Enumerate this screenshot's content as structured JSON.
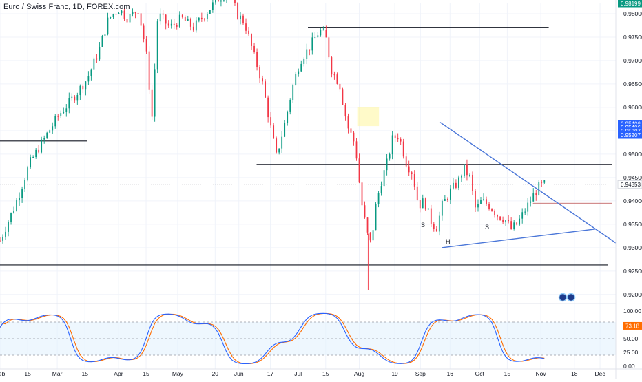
{
  "header": {
    "title": "Euro / Swiss Franc, 1D, FOREX.com"
  },
  "price_axis": {
    "ticks": [
      "0.98000",
      "0.97500",
      "0.97000",
      "0.96500",
      "0.96000",
      "0.95500",
      "0.95000",
      "0.94500",
      "0.94000",
      "0.93500",
      "0.93000",
      "0.92500",
      "0.92000"
    ],
    "badges": [
      {
        "label": "0.98199",
        "price": 0.98199,
        "color": "#089981"
      },
      {
        "label": "0.95406",
        "price": 0.9565,
        "color": "#2962ff"
      },
      {
        "label": "0.95406",
        "price": 0.9557,
        "color": "#2962ff"
      },
      {
        "label": "0.95207",
        "price": 0.9549,
        "color": "#2962ff"
      },
      {
        "label": "0.95207",
        "price": 0.9541,
        "color": "#2962ff"
      },
      {
        "label": "0.94353",
        "price": 0.94353,
        "color": "#ffffff",
        "text": "#131722"
      }
    ]
  },
  "stoch_axis": {
    "ticks": [
      "100.00",
      "75.00",
      "50.00",
      "25.00",
      "0.00"
    ],
    "badge": {
      "label": "73.18",
      "value": 73.18,
      "color": "#ff6d00"
    }
  },
  "time_axis": {
    "labels": [
      {
        "t": "Feb",
        "d": 0
      },
      {
        "t": "15",
        "d": 14
      },
      {
        "t": "Mar",
        "d": 29
      },
      {
        "t": "15",
        "d": 43
      },
      {
        "t": "Apr",
        "d": 60
      },
      {
        "t": "15",
        "d": 74
      },
      {
        "t": "May",
        "d": 90
      },
      {
        "t": "20",
        "d": 109
      },
      {
        "t": "Jun",
        "d": 121
      },
      {
        "t": "17",
        "d": 137
      },
      {
        "t": "Jul",
        "d": 151
      },
      {
        "t": "15",
        "d": 165
      },
      {
        "t": "Aug",
        "d": 182
      },
      {
        "t": "19",
        "d": 200
      },
      {
        "t": "Sep",
        "d": 213
      },
      {
        "t": "16",
        "d": 228
      },
      {
        "t": "Oct",
        "d": 243
      },
      {
        "t": "15",
        "d": 257
      },
      {
        "t": "Nov",
        "d": 274
      },
      {
        "t": "18",
        "d": 291
      },
      {
        "t": "Dec",
        "d": 304
      }
    ]
  },
  "annotations": {
    "s_left": "S",
    "h": "H",
    "s_right": "S"
  },
  "colors": {
    "up": "#089981",
    "down": "#f23645",
    "trend": "#4a76d8",
    "stochK": "#2962ff",
    "stochD": "#ff6d00",
    "band": "#e3f2fd"
  },
  "chart_data": {
    "type": "candlestick",
    "symbol": "Euro / Swiss Franc",
    "timeframe": "1D",
    "price_range": [
      0.9185,
      0.9822
    ],
    "anchors": [
      [
        0,
        0.9315
      ],
      [
        8,
        0.9395
      ],
      [
        15,
        0.948
      ],
      [
        22,
        0.953
      ],
      [
        30,
        0.9585
      ],
      [
        37,
        0.962
      ],
      [
        44,
        0.966
      ],
      [
        50,
        0.972
      ],
      [
        55,
        0.979
      ],
      [
        60,
        0.981
      ],
      [
        65,
        0.979
      ],
      [
        70,
        0.981
      ],
      [
        74,
        0.972
      ],
      [
        77,
        0.958
      ],
      [
        80,
        0.98
      ],
      [
        86,
        0.977
      ],
      [
        92,
        0.979
      ],
      [
        98,
        0.977
      ],
      [
        104,
        0.98
      ],
      [
        110,
        0.983
      ],
      [
        116,
        0.985
      ],
      [
        120,
        0.98
      ],
      [
        124,
        0.978
      ],
      [
        128,
        0.972
      ],
      [
        133,
        0.965
      ],
      [
        137,
        0.956
      ],
      [
        140,
        0.9495
      ],
      [
        144,
        0.956
      ],
      [
        148,
        0.964
      ],
      [
        152,
        0.97
      ],
      [
        157,
        0.973
      ],
      [
        162,
        0.9765
      ],
      [
        165,
        0.975
      ],
      [
        168,
        0.968
      ],
      [
        172,
        0.965
      ],
      [
        176,
        0.956
      ],
      [
        180,
        0.952
      ],
      [
        183,
        0.94
      ],
      [
        186,
        0.933
      ],
      [
        188,
        0.9305
      ],
      [
        190,
        0.938
      ],
      [
        193,
        0.944
      ],
      [
        196,
        0.948
      ],
      [
        199,
        0.9535
      ],
      [
        202,
        0.954
      ],
      [
        206,
        0.948
      ],
      [
        209,
        0.946
      ],
      [
        212,
        0.939
      ],
      [
        215,
        0.94
      ],
      [
        218,
        0.936
      ],
      [
        221,
        0.934
      ],
      [
        224,
        0.939
      ],
      [
        228,
        0.942
      ],
      [
        232,
        0.944
      ],
      [
        235,
        0.947
      ],
      [
        238,
        0.945
      ],
      [
        241,
        0.938
      ],
      [
        244,
        0.94
      ],
      [
        248,
        0.939
      ],
      [
        252,
        0.937
      ],
      [
        256,
        0.936
      ],
      [
        259,
        0.934
      ],
      [
        262,
        0.935
      ],
      [
        266,
        0.938
      ],
      [
        270,
        0.941
      ],
      [
        273,
        0.943
      ],
      [
        276,
        0.9435
      ]
    ],
    "levels": [
      {
        "price": 0.9528,
        "from_day": 0,
        "to_day": 44
      },
      {
        "price": 0.9771,
        "from_day": 156,
        "to_day": 278
      },
      {
        "price": 0.9478,
        "from_day": 130,
        "to_day": 310
      },
      {
        "price": 0.9263,
        "from_day": 0,
        "to_day": 308
      },
      {
        "price": 0.9395,
        "from_day": 270,
        "to_day": 310
      },
      {
        "price": 0.934,
        "from_day": 265,
        "to_day": 310
      }
    ],
    "trendlines": [
      {
        "from": [
          223,
          0.9568
        ],
        "to": [
          312,
          0.931
        ]
      },
      {
        "from": [
          224,
          0.93
        ],
        "to": [
          302,
          0.934
        ]
      }
    ],
    "highlight_zone": {
      "from_day": 181,
      "to_day": 192,
      "price_hi": 0.96,
      "price_lo": 0.956
    },
    "stochastic": {
      "range": [
        0,
        100
      ],
      "bands": [
        20,
        50,
        80
      ]
    }
  }
}
